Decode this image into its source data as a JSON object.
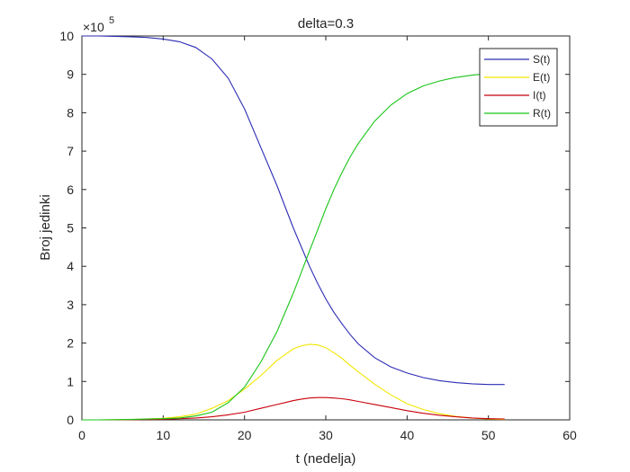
{
  "chart_data": {
    "type": "line",
    "title": "delta=0.3",
    "xlabel": "t (nedelja)",
    "ylabel": "Broj jedinki",
    "exponent_label": "×10",
    "exponent_power": "5",
    "xlim": [
      0,
      60
    ],
    "ylim": [
      0,
      10
    ],
    "xticks": [
      0,
      10,
      20,
      30,
      40,
      50,
      60
    ],
    "yticks": [
      0,
      1,
      2,
      3,
      4,
      5,
      6,
      7,
      8,
      9,
      10
    ],
    "xtick_labels": [
      "0",
      "10",
      "20",
      "30",
      "40",
      "50",
      "60"
    ],
    "ytick_labels": [
      "0",
      "1",
      "2",
      "3",
      "4",
      "5",
      "6",
      "7",
      "8",
      "9",
      "10"
    ],
    "grid": false,
    "legend_position": "top-right",
    "x": [
      0,
      2,
      4,
      6,
      8,
      10,
      12,
      14,
      16,
      18,
      20,
      22,
      24,
      25,
      26,
      27,
      28,
      29,
      30,
      31,
      32,
      33,
      34,
      36,
      38,
      40,
      42,
      44,
      46,
      48,
      50,
      52
    ],
    "series": [
      {
        "name": "S(t)",
        "color": "#2c2cb4",
        "values": [
          10.0,
          10.0,
          9.99,
          9.98,
          9.96,
          9.92,
          9.85,
          9.7,
          9.4,
          8.9,
          8.1,
          7.1,
          6.1,
          5.55,
          5.0,
          4.5,
          4.0,
          3.55,
          3.15,
          2.8,
          2.5,
          2.22,
          1.98,
          1.62,
          1.38,
          1.22,
          1.1,
          1.02,
          0.97,
          0.94,
          0.92,
          0.92
        ]
      },
      {
        "name": "E(t)",
        "color": "#f2e600",
        "values": [
          0,
          0,
          0.005,
          0.01,
          0.02,
          0.04,
          0.08,
          0.15,
          0.3,
          0.5,
          0.8,
          1.15,
          1.55,
          1.7,
          1.85,
          1.93,
          1.97,
          1.95,
          1.88,
          1.75,
          1.6,
          1.42,
          1.25,
          0.93,
          0.65,
          0.42,
          0.27,
          0.16,
          0.09,
          0.05,
          0.02,
          0.01
        ]
      },
      {
        "name": "I(t)",
        "color": "#c8000a",
        "values": [
          0,
          0,
          0.0,
          0.005,
          0.01,
          0.015,
          0.03,
          0.05,
          0.08,
          0.13,
          0.2,
          0.3,
          0.4,
          0.45,
          0.5,
          0.54,
          0.57,
          0.58,
          0.58,
          0.57,
          0.55,
          0.52,
          0.48,
          0.4,
          0.32,
          0.24,
          0.17,
          0.12,
          0.08,
          0.05,
          0.03,
          0.02
        ]
      },
      {
        "name": "R(t)",
        "color": "#18c418",
        "values": [
          0,
          0,
          0.005,
          0.01,
          0.02,
          0.03,
          0.05,
          0.1,
          0.2,
          0.45,
          0.85,
          1.5,
          2.3,
          2.8,
          3.3,
          3.85,
          4.4,
          4.95,
          5.5,
          6.0,
          6.45,
          6.85,
          7.2,
          7.78,
          8.2,
          8.5,
          8.7,
          8.83,
          8.92,
          8.98,
          9.02,
          9.04
        ]
      }
    ]
  }
}
